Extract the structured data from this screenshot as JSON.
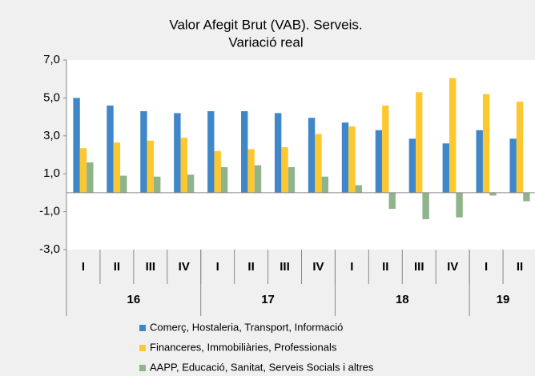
{
  "chart_data": {
    "type": "bar",
    "title": [
      "Valor Afegit Brut (VAB). Serveis.",
      "Variació real"
    ],
    "categories": [
      "I",
      "II",
      "III",
      "IV",
      "I",
      "II",
      "III",
      "IV",
      "I",
      "II",
      "III",
      "IV",
      "I",
      "II"
    ],
    "x_groups": [
      {
        "label": "16",
        "count": 4
      },
      {
        "label": "17",
        "count": 4
      },
      {
        "label": "18",
        "count": 4
      },
      {
        "label": "19",
        "count": 2
      }
    ],
    "series": [
      {
        "name": "Comerç, Hostaleria, Transport, Informació",
        "color": "#3f87c8",
        "values": [
          5.0,
          4.6,
          4.3,
          4.2,
          4.3,
          4.3,
          4.2,
          3.95,
          3.7,
          3.3,
          2.85,
          2.6,
          3.3,
          2.85
        ]
      },
      {
        "name": "Financeres, Immobiliàries, Professionals",
        "color": "#fdc82f",
        "values": [
          2.35,
          2.65,
          2.75,
          2.9,
          2.2,
          2.3,
          2.4,
          3.1,
          3.5,
          4.6,
          5.3,
          6.05,
          5.2,
          4.8
        ]
      },
      {
        "name": "AAPP, Educació, Sanitat, Serveis Socials i altres",
        "color": "#8fb38a",
        "values": [
          1.6,
          0.9,
          0.85,
          0.95,
          1.35,
          1.45,
          1.35,
          0.85,
          0.4,
          -0.85,
          -1.4,
          -1.3,
          -0.15,
          -0.45
        ]
      }
    ],
    "ylim": [
      -3,
      7
    ],
    "yticks": [
      {
        "value": 7,
        "label": "7,0"
      },
      {
        "value": 5,
        "label": "5,0"
      },
      {
        "value": 3,
        "label": "3,0"
      },
      {
        "value": 1,
        "label": "1,0"
      },
      {
        "value": -1,
        "label": "-1,0"
      },
      {
        "value": -3,
        "label": "-3,0"
      }
    ],
    "grid": false,
    "legend": "bottom"
  }
}
